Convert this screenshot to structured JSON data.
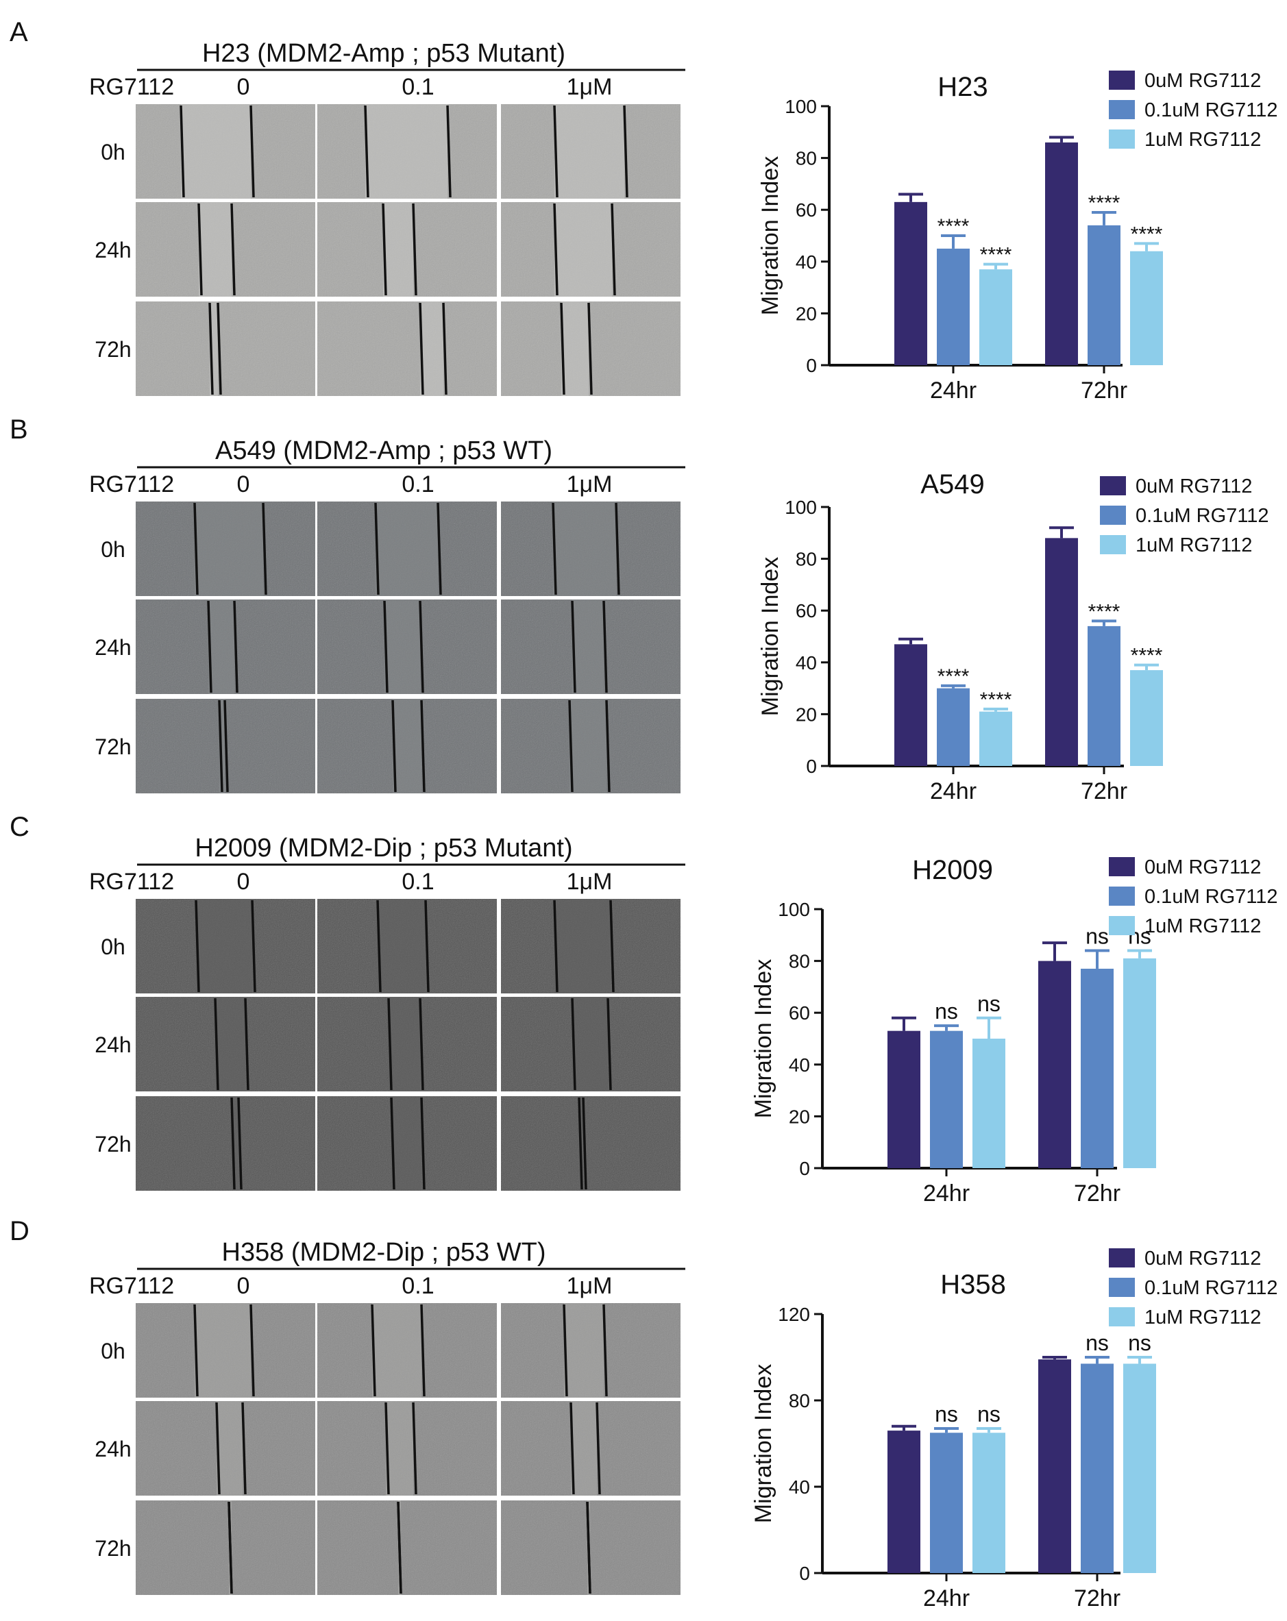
{
  "colors": {
    "bar_0uM": "#352a6e",
    "bar_01uM": "#5a86c4",
    "bar_1uM": "#8dcdea",
    "wound_line": "#111111"
  },
  "panels": [
    {
      "letter": "A",
      "header": "H23 (MDM2-Amp ; p53 Mutant)",
      "drug_label": "RG7112",
      "conc_labels": [
        "0",
        "0.1",
        "1μM"
      ],
      "time_labels": [
        "0h",
        "24h",
        "72h"
      ],
      "image_tone": "light"
    },
    {
      "letter": "B",
      "header": "A549 (MDM2-Amp ; p53 WT)",
      "drug_label": "RG7112",
      "conc_labels": [
        "0",
        "0.1",
        "1μM"
      ],
      "time_labels": [
        "0h",
        "24h",
        "72h"
      ],
      "image_tone": "medium"
    },
    {
      "letter": "C",
      "header": "H2009 (MDM2-Dip ; p53 Mutant)",
      "drug_label": "RG7112",
      "conc_labels": [
        "0",
        "0.1",
        "1μM"
      ],
      "time_labels": [
        "0h",
        "24h",
        "72h"
      ],
      "image_tone": "dark"
    },
    {
      "letter": "D",
      "header": "H358 (MDM2-Dip ; p53 WT)",
      "drug_label": "RG7112",
      "conc_labels": [
        "0",
        "0.1",
        "1μM"
      ],
      "time_labels": [
        "0h",
        "24h",
        "72h"
      ],
      "image_tone": "medium-light"
    }
  ],
  "chart_data": [
    {
      "type": "bar",
      "title": "H23",
      "ylabel": "Migration Index",
      "xlabel": "",
      "categories": [
        "24hr",
        "72hr"
      ],
      "ylim": [
        0,
        100
      ],
      "yticks": [
        0,
        20,
        40,
        60,
        80,
        100
      ],
      "legend_position": "top-right",
      "series": [
        {
          "name": "0uM RG7112",
          "values": [
            63,
            86
          ],
          "errors": [
            3,
            2
          ],
          "annotations": [
            "",
            ""
          ]
        },
        {
          "name": "0.1uM RG7112",
          "values": [
            45,
            54
          ],
          "errors": [
            5,
            5
          ],
          "annotations": [
            "****",
            "****"
          ]
        },
        {
          "name": "1uM RG7112",
          "values": [
            37,
            44
          ],
          "errors": [
            2,
            3
          ],
          "annotations": [
            "****",
            "****"
          ]
        }
      ]
    },
    {
      "type": "bar",
      "title": "A549",
      "ylabel": "Migration Index",
      "xlabel": "",
      "categories": [
        "24hr",
        "72hr"
      ],
      "ylim": [
        0,
        100
      ],
      "yticks": [
        0,
        20,
        40,
        60,
        80,
        100
      ],
      "legend_position": "top-right",
      "series": [
        {
          "name": "0uM RG7112",
          "values": [
            47,
            88
          ],
          "errors": [
            2,
            4
          ],
          "annotations": [
            "",
            ""
          ]
        },
        {
          "name": "0.1uM RG7112",
          "values": [
            30,
            54
          ],
          "errors": [
            1,
            2
          ],
          "annotations": [
            "****",
            "****"
          ]
        },
        {
          "name": "1uM RG7112",
          "values": [
            21,
            37
          ],
          "errors": [
            1,
            2
          ],
          "annotations": [
            "****",
            "****"
          ]
        }
      ]
    },
    {
      "type": "bar",
      "title": "H2009",
      "ylabel": "Migration Index",
      "xlabel": "",
      "categories": [
        "24hr",
        "72hr"
      ],
      "ylim": [
        0,
        100
      ],
      "yticks": [
        0,
        20,
        40,
        60,
        80,
        100
      ],
      "legend_position": "top-right",
      "series": [
        {
          "name": "0uM RG7112",
          "values": [
            53,
            80
          ],
          "errors": [
            5,
            7
          ],
          "annotations": [
            "",
            ""
          ]
        },
        {
          "name": "0.1uM RG7112",
          "values": [
            53,
            77
          ],
          "errors": [
            2,
            7
          ],
          "annotations": [
            "ns",
            "ns"
          ]
        },
        {
          "name": "1uM RG7112",
          "values": [
            50,
            81
          ],
          "errors": [
            8,
            3
          ],
          "annotations": [
            "ns",
            "ns"
          ]
        }
      ]
    },
    {
      "type": "bar",
      "title": "H358",
      "ylabel": "Migration Index",
      "xlabel": "",
      "categories": [
        "24hr",
        "72hr"
      ],
      "ylim": [
        0,
        120
      ],
      "yticks": [
        0,
        40,
        80,
        120
      ],
      "legend_position": "top-right",
      "series": [
        {
          "name": "0uM RG7112",
          "values": [
            66,
            99
          ],
          "errors": [
            2,
            1
          ],
          "annotations": [
            "",
            ""
          ]
        },
        {
          "name": "0.1uM RG7112",
          "values": [
            65,
            97
          ],
          "errors": [
            2,
            3
          ],
          "annotations": [
            "ns",
            "ns"
          ]
        },
        {
          "name": "1uM RG7112",
          "values": [
            65,
            97
          ],
          "errors": [
            2,
            3
          ],
          "annotations": [
            "ns",
            "ns"
          ]
        }
      ]
    }
  ]
}
